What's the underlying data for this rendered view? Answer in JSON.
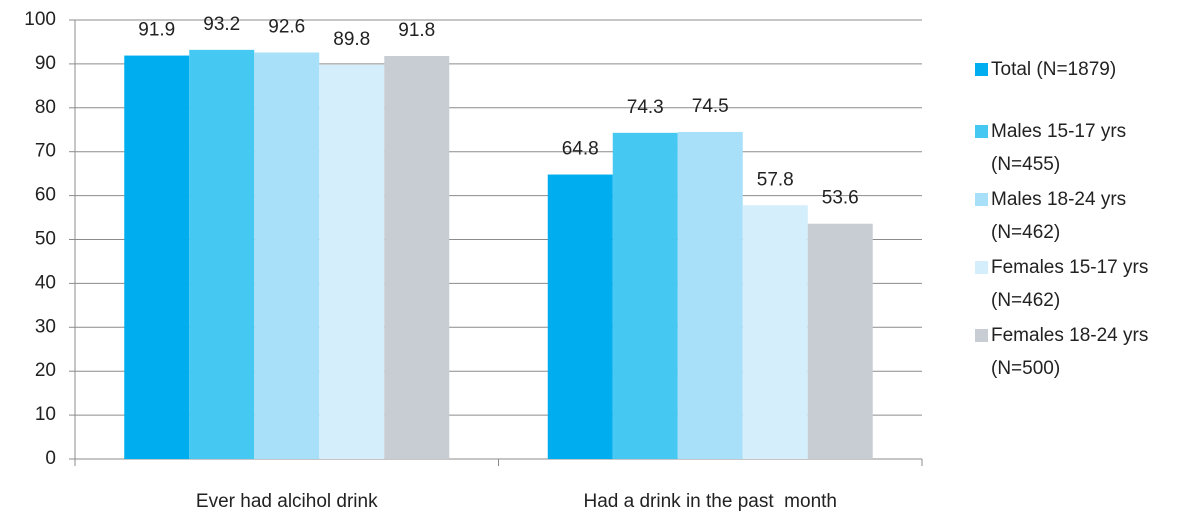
{
  "chart_data": {
    "type": "bar",
    "categories": [
      "Ever had alcihol drink",
      "Had a drink in the past  month"
    ],
    "series": [
      {
        "name": "Total (N=1879)",
        "color": "#00adef",
        "values": [
          91.9,
          64.8
        ]
      },
      {
        "name": "Males 15-17 yrs (N=455)",
        "color": "#45c8f2",
        "values": [
          93.2,
          74.3
        ]
      },
      {
        "name": "Males 18-24 yrs (N=462)",
        "color": "#a8e0f9",
        "values": [
          92.6,
          74.5
        ]
      },
      {
        "name": "Females 15-17 yrs (N=462)",
        "color": "#d4eefb",
        "values": [
          89.8,
          57.8
        ]
      },
      {
        "name": "Females 18-24 yrs (N=500)",
        "color": "#c8cdd4",
        "values": [
          91.8,
          53.6
        ]
      }
    ],
    "ylim": [
      0,
      100
    ],
    "yticks": [
      0,
      10,
      20,
      30,
      40,
      50,
      60,
      70,
      80,
      90,
      100
    ],
    "grid": true,
    "legend": "right"
  }
}
